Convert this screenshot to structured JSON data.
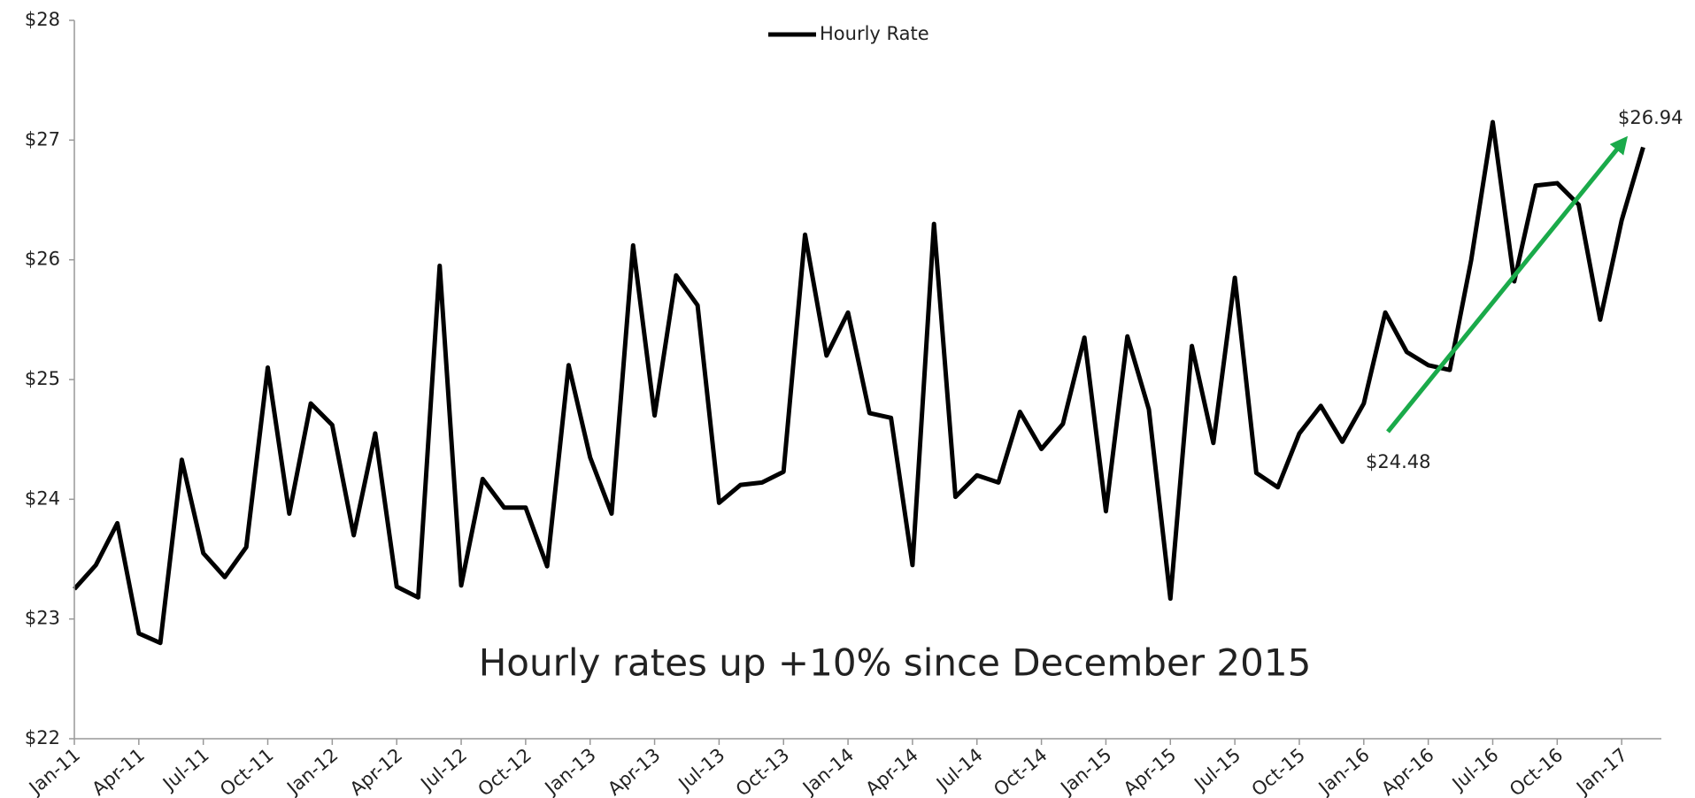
{
  "chart_data": {
    "type": "line",
    "legend": "top",
    "series": [
      {
        "name": "Hourly Rate",
        "color": "#000000",
        "values": [
          23.25,
          23.45,
          23.8,
          22.88,
          22.8,
          24.33,
          23.55,
          23.35,
          23.6,
          25.1,
          23.88,
          24.8,
          24.62,
          23.7,
          24.55,
          23.27,
          23.18,
          25.95,
          23.28,
          24.17,
          23.93,
          23.93,
          23.44,
          25.12,
          24.35,
          23.88,
          26.12,
          24.7,
          25.87,
          25.62,
          23.97,
          24.12,
          24.14,
          24.23,
          26.21,
          25.2,
          25.56,
          24.72,
          24.68,
          23.45,
          26.3,
          24.02,
          24.2,
          24.14,
          24.73,
          24.42,
          24.63,
          25.35,
          23.9,
          25.36,
          24.75,
          23.17,
          25.28,
          24.47,
          25.85,
          24.22,
          24.1,
          24.55,
          24.78,
          24.48,
          24.8,
          25.56,
          25.23,
          25.12,
          25.08,
          26.0,
          27.15,
          25.82,
          26.62,
          26.64,
          26.46,
          25.5,
          26.33,
          26.94
        ]
      }
    ],
    "categories": [
      "Jan-11",
      null,
      null,
      "Apr-11",
      null,
      null,
      "Jul-11",
      null,
      null,
      "Oct-11",
      null,
      null,
      "Jan-12",
      null,
      null,
      "Apr-12",
      null,
      null,
      "Jul-12",
      null,
      null,
      "Oct-12",
      null,
      null,
      "Jan-13",
      null,
      null,
      "Apr-13",
      null,
      null,
      "Jul-13",
      null,
      null,
      "Oct-13",
      null,
      null,
      "Jan-14",
      null,
      null,
      "Apr-14",
      null,
      null,
      "Jul-14",
      null,
      null,
      "Oct-14",
      null,
      null,
      "Jan-15",
      null,
      null,
      "Apr-15",
      null,
      null,
      "Jul-15",
      null,
      null,
      "Oct-15",
      null,
      null,
      "Jan-16",
      null,
      null,
      "Apr-16",
      null,
      null,
      "Jul-16",
      null,
      null,
      "Oct-16",
      null,
      null,
      "Jan-17",
      null
    ],
    "ylim": [
      22,
      28
    ],
    "yticks": [
      {
        "value": 22,
        "label": "$22"
      },
      {
        "value": 23,
        "label": "$23"
      },
      {
        "value": 24,
        "label": "$24"
      },
      {
        "value": 25,
        "label": "$25"
      },
      {
        "value": 26,
        "label": "$26"
      },
      {
        "value": 27,
        "label": "$27"
      },
      {
        "value": 28,
        "label": "$28"
      }
    ],
    "annotations": [
      "$26.94",
      "$24.48",
      "Hourly rates up +10% since December 2015"
    ]
  }
}
